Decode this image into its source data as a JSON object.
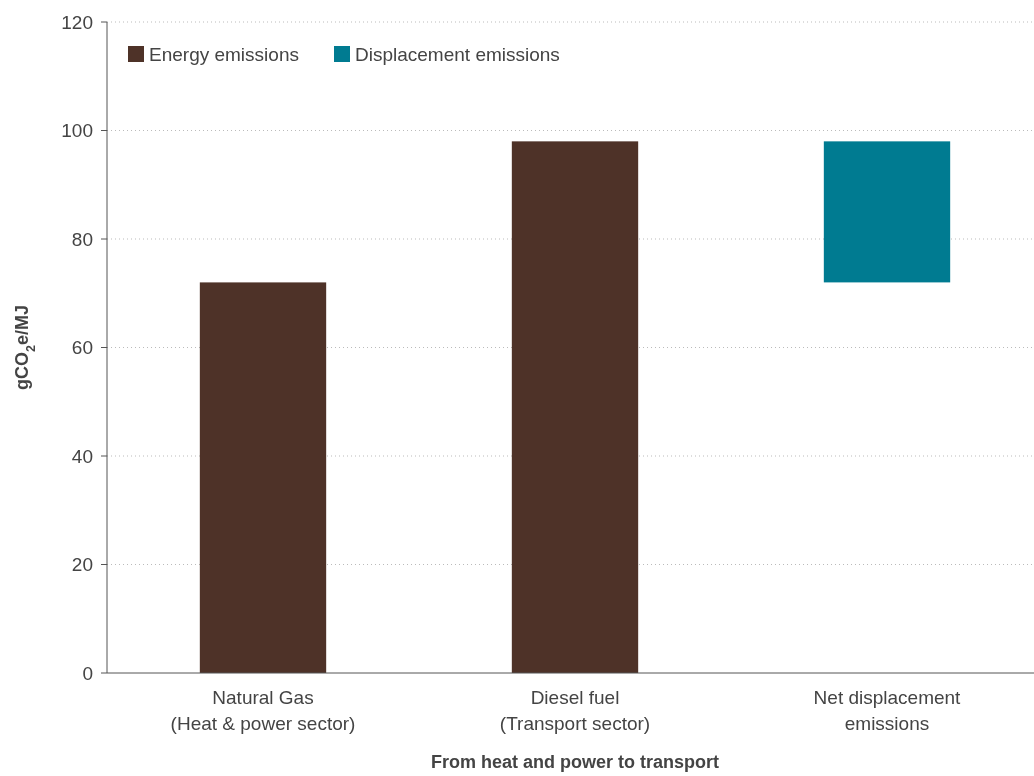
{
  "chart_data": {
    "type": "bar",
    "xlabel": "From heat and power to transport",
    "ylabel": "gCO$_{2}$e/MJ",
    "categories": [
      "Natural Gas\n(Heat & power sector)",
      "Diesel fuel\n(Transport sector)",
      "Net displacement\nemissions"
    ],
    "series": [
      {
        "name": "Energy emissions",
        "color": "#4e3228",
        "values": [
          72,
          98,
          null
        ]
      },
      {
        "name": "Displacement emissions",
        "color": "#007b91",
        "values": [
          null,
          null,
          26
        ],
        "base": [
          null,
          null,
          72
        ]
      }
    ],
    "ylim": [
      0,
      120
    ],
    "yticks": [
      0,
      20,
      40,
      60,
      80,
      100,
      120
    ],
    "grid": "y",
    "legend": "top left"
  }
}
